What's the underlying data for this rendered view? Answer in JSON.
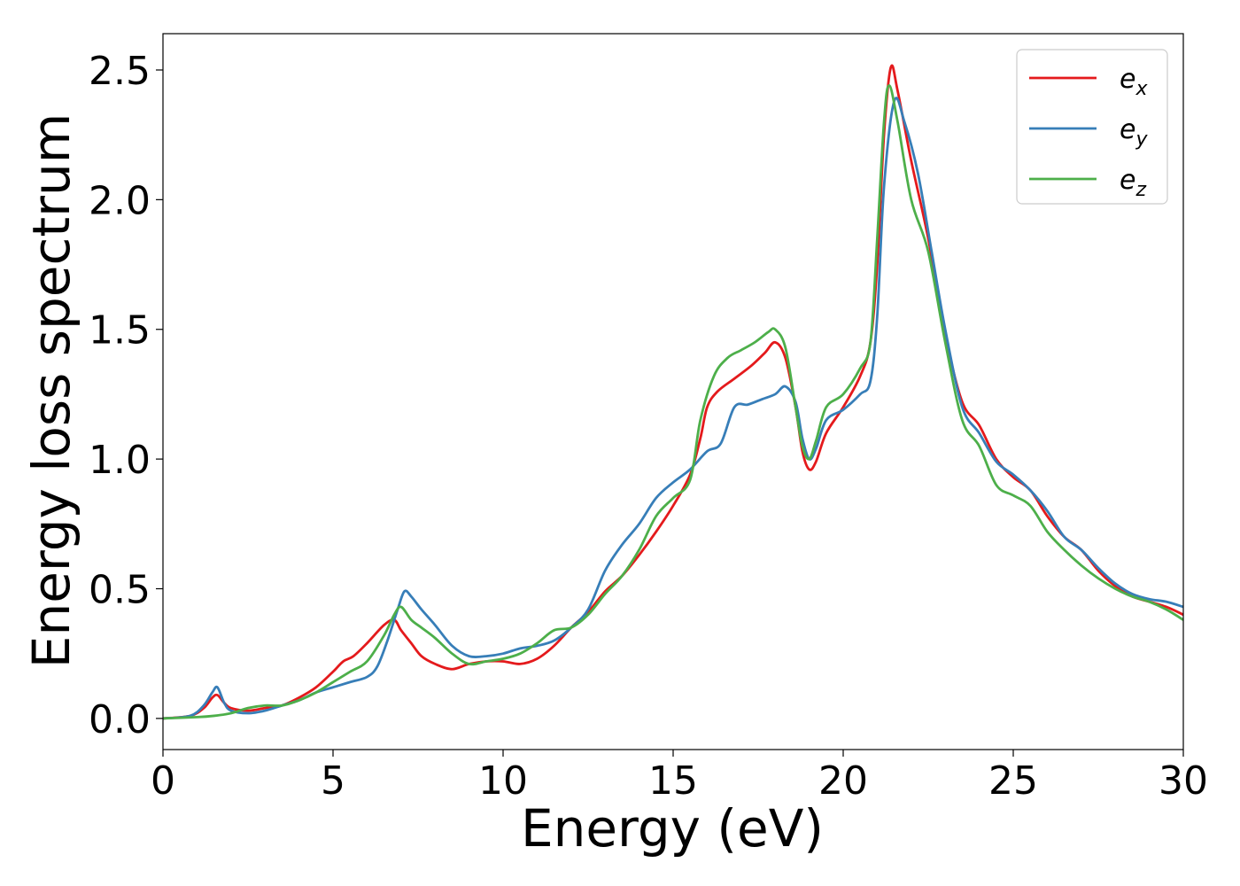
{
  "chart_data": {
    "type": "line",
    "title": "",
    "xlabel": "Energy (eV)",
    "ylabel": "Energy loss spectrum",
    "xlim": [
      0,
      30
    ],
    "ylim": [
      -0.12,
      2.64
    ],
    "x_ticks": [
      "0",
      "5",
      "10",
      "15",
      "20",
      "25",
      "30"
    ],
    "y_ticks": [
      "0.0",
      "0.5",
      "1.0",
      "1.5",
      "2.0",
      "2.5"
    ],
    "grid": false,
    "legend": "top-right",
    "series": [
      {
        "name": "e",
        "subscript": "x",
        "color": "#e41a1c",
        "points": [
          [
            0,
            0
          ],
          [
            0.8,
            0.01
          ],
          [
            1.2,
            0.04
          ],
          [
            1.45,
            0.08
          ],
          [
            1.6,
            0.09
          ],
          [
            1.8,
            0.06
          ],
          [
            2.0,
            0.04
          ],
          [
            2.5,
            0.03
          ],
          [
            3.0,
            0.04
          ],
          [
            3.5,
            0.05
          ],
          [
            4.0,
            0.08
          ],
          [
            4.5,
            0.12
          ],
          [
            5.0,
            0.18
          ],
          [
            5.3,
            0.22
          ],
          [
            5.6,
            0.24
          ],
          [
            6.0,
            0.29
          ],
          [
            6.5,
            0.36
          ],
          [
            6.8,
            0.38
          ],
          [
            7.0,
            0.34
          ],
          [
            7.3,
            0.29
          ],
          [
            7.6,
            0.24
          ],
          [
            8.0,
            0.21
          ],
          [
            8.5,
            0.19
          ],
          [
            9.0,
            0.21
          ],
          [
            9.5,
            0.22
          ],
          [
            10.0,
            0.22
          ],
          [
            10.5,
            0.21
          ],
          [
            11.0,
            0.23
          ],
          [
            11.5,
            0.28
          ],
          [
            12.0,
            0.35
          ],
          [
            12.5,
            0.41
          ],
          [
            13.0,
            0.49
          ],
          [
            13.5,
            0.55
          ],
          [
            14.0,
            0.63
          ],
          [
            14.5,
            0.72
          ],
          [
            15.0,
            0.82
          ],
          [
            15.5,
            0.94
          ],
          [
            15.8,
            1.08
          ],
          [
            16.0,
            1.2
          ],
          [
            16.3,
            1.26
          ],
          [
            16.8,
            1.31
          ],
          [
            17.3,
            1.36
          ],
          [
            17.7,
            1.41
          ],
          [
            18.0,
            1.45
          ],
          [
            18.3,
            1.39
          ],
          [
            18.6,
            1.2
          ],
          [
            18.8,
            1.03
          ],
          [
            19.0,
            0.96
          ],
          [
            19.2,
            0.99
          ],
          [
            19.5,
            1.1
          ],
          [
            20.0,
            1.2
          ],
          [
            20.5,
            1.32
          ],
          [
            20.8,
            1.45
          ],
          [
            21.0,
            1.75
          ],
          [
            21.2,
            2.25
          ],
          [
            21.4,
            2.51
          ],
          [
            21.6,
            2.42
          ],
          [
            22.0,
            2.15
          ],
          [
            22.5,
            1.85
          ],
          [
            23.0,
            1.48
          ],
          [
            23.5,
            1.22
          ],
          [
            24.0,
            1.13
          ],
          [
            24.5,
            1.0
          ],
          [
            25.0,
            0.93
          ],
          [
            25.5,
            0.88
          ],
          [
            26.0,
            0.78
          ],
          [
            26.5,
            0.7
          ],
          [
            27.0,
            0.65
          ],
          [
            27.5,
            0.57
          ],
          [
            28.0,
            0.51
          ],
          [
            28.5,
            0.47
          ],
          [
            29.0,
            0.45
          ],
          [
            29.5,
            0.43
          ],
          [
            30,
            0.4
          ]
        ]
      },
      {
        "name": "e",
        "subscript": "y",
        "color": "#377eb8",
        "points": [
          [
            0,
            0
          ],
          [
            0.8,
            0.01
          ],
          [
            1.2,
            0.05
          ],
          [
            1.45,
            0.1
          ],
          [
            1.6,
            0.12
          ],
          [
            1.8,
            0.06
          ],
          [
            2.0,
            0.03
          ],
          [
            2.5,
            0.02
          ],
          [
            3.0,
            0.03
          ],
          [
            3.5,
            0.05
          ],
          [
            4.0,
            0.07
          ],
          [
            4.5,
            0.1
          ],
          [
            5.0,
            0.12
          ],
          [
            5.5,
            0.14
          ],
          [
            6.0,
            0.16
          ],
          [
            6.3,
            0.2
          ],
          [
            6.6,
            0.3
          ],
          [
            6.9,
            0.42
          ],
          [
            7.1,
            0.49
          ],
          [
            7.3,
            0.47
          ],
          [
            7.6,
            0.42
          ],
          [
            8.0,
            0.36
          ],
          [
            8.5,
            0.28
          ],
          [
            9.0,
            0.24
          ],
          [
            9.5,
            0.24
          ],
          [
            10.0,
            0.25
          ],
          [
            10.5,
            0.27
          ],
          [
            11.0,
            0.28
          ],
          [
            11.5,
            0.3
          ],
          [
            12.0,
            0.35
          ],
          [
            12.5,
            0.42
          ],
          [
            13.0,
            0.57
          ],
          [
            13.5,
            0.67
          ],
          [
            14.0,
            0.75
          ],
          [
            14.5,
            0.85
          ],
          [
            15.0,
            0.91
          ],
          [
            15.5,
            0.96
          ],
          [
            16.0,
            1.03
          ],
          [
            16.4,
            1.06
          ],
          [
            16.8,
            1.2
          ],
          [
            17.2,
            1.21
          ],
          [
            17.6,
            1.23
          ],
          [
            18.0,
            1.25
          ],
          [
            18.3,
            1.28
          ],
          [
            18.6,
            1.22
          ],
          [
            18.8,
            1.08
          ],
          [
            19.0,
            1.0
          ],
          [
            19.2,
            1.04
          ],
          [
            19.5,
            1.15
          ],
          [
            20.0,
            1.19
          ],
          [
            20.5,
            1.25
          ],
          [
            20.8,
            1.3
          ],
          [
            21.0,
            1.55
          ],
          [
            21.2,
            2.05
          ],
          [
            21.5,
            2.38
          ],
          [
            21.8,
            2.3
          ],
          [
            22.2,
            2.1
          ],
          [
            22.6,
            1.8
          ],
          [
            23.0,
            1.5
          ],
          [
            23.5,
            1.2
          ],
          [
            24.0,
            1.1
          ],
          [
            24.5,
            0.99
          ],
          [
            25.0,
            0.94
          ],
          [
            25.5,
            0.88
          ],
          [
            26.0,
            0.8
          ],
          [
            26.5,
            0.7
          ],
          [
            27.0,
            0.65
          ],
          [
            27.5,
            0.58
          ],
          [
            28.0,
            0.52
          ],
          [
            28.5,
            0.48
          ],
          [
            29.0,
            0.46
          ],
          [
            29.5,
            0.45
          ],
          [
            30,
            0.43
          ]
        ]
      },
      {
        "name": "e",
        "subscript": "z",
        "color": "#4daf4a",
        "points": [
          [
            0,
            0
          ],
          [
            1.0,
            0.005
          ],
          [
            1.5,
            0.01
          ],
          [
            2.0,
            0.02
          ],
          [
            2.5,
            0.04
          ],
          [
            3.0,
            0.05
          ],
          [
            3.5,
            0.05
          ],
          [
            4.0,
            0.07
          ],
          [
            4.5,
            0.1
          ],
          [
            5.0,
            0.14
          ],
          [
            5.5,
            0.18
          ],
          [
            6.0,
            0.22
          ],
          [
            6.5,
            0.32
          ],
          [
            6.8,
            0.4
          ],
          [
            7.0,
            0.43
          ],
          [
            7.3,
            0.38
          ],
          [
            7.6,
            0.35
          ],
          [
            8.0,
            0.31
          ],
          [
            8.5,
            0.25
          ],
          [
            9.0,
            0.21
          ],
          [
            9.5,
            0.22
          ],
          [
            10.0,
            0.23
          ],
          [
            10.5,
            0.25
          ],
          [
            11.0,
            0.29
          ],
          [
            11.5,
            0.34
          ],
          [
            12.0,
            0.35
          ],
          [
            12.5,
            0.4
          ],
          [
            13.0,
            0.48
          ],
          [
            13.5,
            0.55
          ],
          [
            14.0,
            0.65
          ],
          [
            14.5,
            0.78
          ],
          [
            15.0,
            0.85
          ],
          [
            15.5,
            0.92
          ],
          [
            15.8,
            1.15
          ],
          [
            16.2,
            1.32
          ],
          [
            16.6,
            1.39
          ],
          [
            17.0,
            1.42
          ],
          [
            17.4,
            1.45
          ],
          [
            17.8,
            1.49
          ],
          [
            18.0,
            1.5
          ],
          [
            18.3,
            1.43
          ],
          [
            18.6,
            1.2
          ],
          [
            18.8,
            1.05
          ],
          [
            19.0,
            1.0
          ],
          [
            19.2,
            1.07
          ],
          [
            19.5,
            1.2
          ],
          [
            20.0,
            1.25
          ],
          [
            20.5,
            1.35
          ],
          [
            20.8,
            1.45
          ],
          [
            21.0,
            1.85
          ],
          [
            21.2,
            2.3
          ],
          [
            21.35,
            2.44
          ],
          [
            21.6,
            2.3
          ],
          [
            22.0,
            2.0
          ],
          [
            22.5,
            1.8
          ],
          [
            23.0,
            1.45
          ],
          [
            23.5,
            1.15
          ],
          [
            24.0,
            1.05
          ],
          [
            24.5,
            0.9
          ],
          [
            25.0,
            0.86
          ],
          [
            25.5,
            0.82
          ],
          [
            26.0,
            0.72
          ],
          [
            26.5,
            0.65
          ],
          [
            27.0,
            0.59
          ],
          [
            27.5,
            0.54
          ],
          [
            28.0,
            0.5
          ],
          [
            28.5,
            0.47
          ],
          [
            29.0,
            0.45
          ],
          [
            29.5,
            0.42
          ],
          [
            30,
            0.38
          ]
        ]
      }
    ]
  }
}
